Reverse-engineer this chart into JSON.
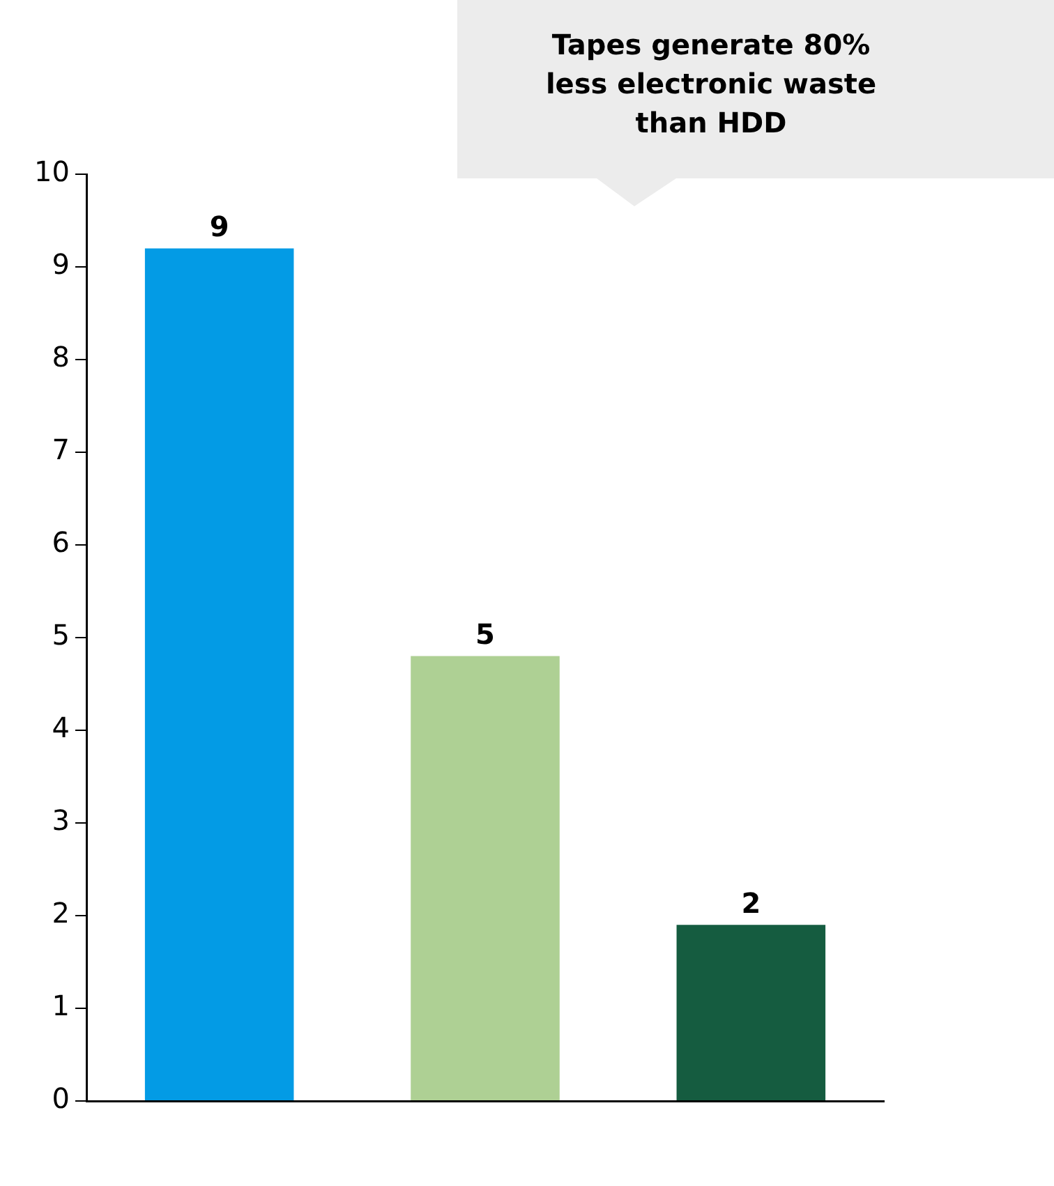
{
  "chart_data": {
    "type": "bar",
    "categories": [
      null,
      null,
      null
    ],
    "series": [
      {
        "colors": [
          "#039be5",
          "#aed094",
          "#155c40"
        ],
        "values": [
          9.2,
          4.8,
          1.9
        ],
        "value_labels": [
          "9",
          "5",
          "2"
        ]
      }
    ],
    "ylim": [
      0,
      10
    ],
    "yticks": [
      0,
      1,
      2,
      3,
      4,
      5,
      6,
      7,
      8,
      9,
      10
    ],
    "grid": false,
    "legend": false,
    "annotations": [
      "Tapes generate 80% less electronic waste than HDD"
    ]
  }
}
